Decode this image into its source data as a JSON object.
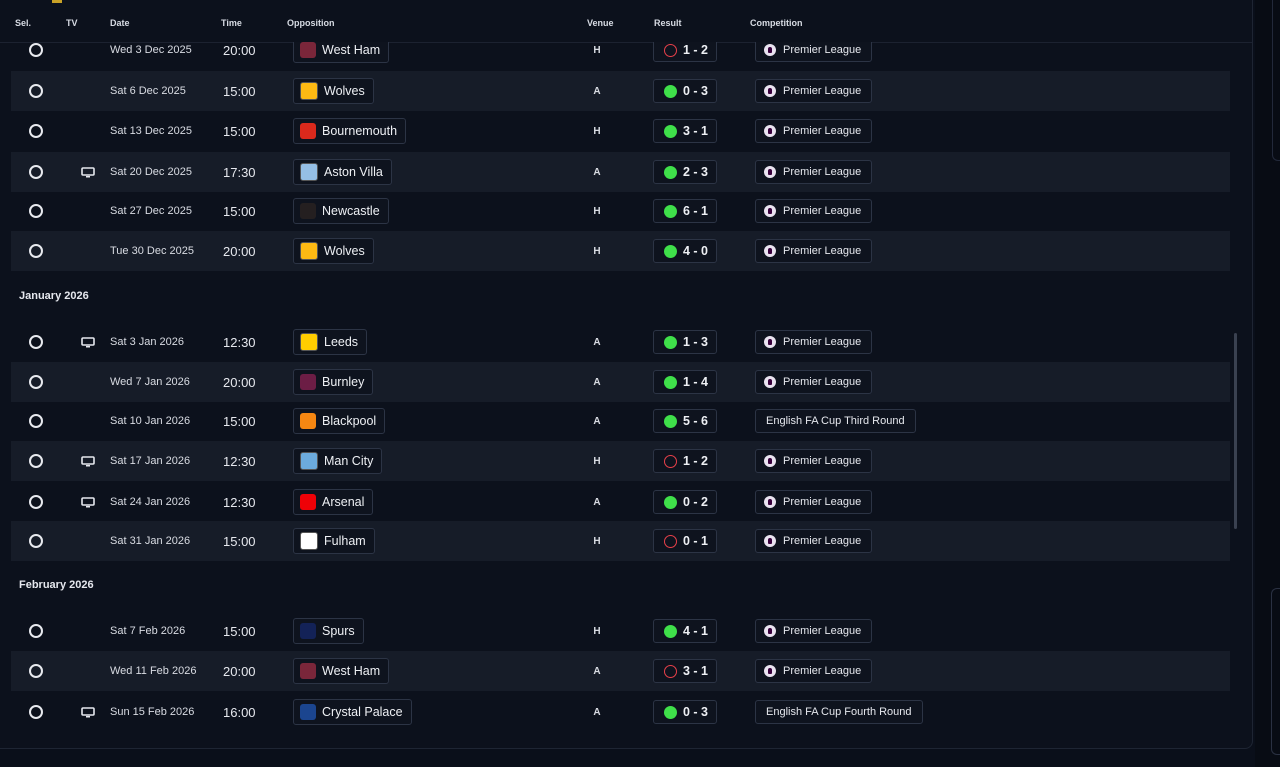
{
  "headers": {
    "sel": "Sel.",
    "tv": "TV",
    "date": "Date",
    "time": "Time",
    "opposition": "Opposition",
    "venue": "Venue",
    "result": "Result",
    "competition": "Competition"
  },
  "months": {
    "jan": "January 2026",
    "feb": "February 2026"
  },
  "rows": [
    {
      "date": "Wed 3 Dec 2025",
      "time": "20:00",
      "team": "West Ham",
      "venue": "H",
      "score": "1 - 2",
      "outcome": "loss",
      "competition": "Premier League",
      "tv": false,
      "crest": "west-ham-crest-icon",
      "crest_color": "#7a263a"
    },
    {
      "date": "Sat 6 Dec 2025",
      "time": "15:00",
      "team": "Wolves",
      "venue": "A",
      "score": "0 - 3",
      "outcome": "win",
      "competition": "Premier League",
      "tv": false,
      "crest": "wolves-crest-icon",
      "crest_color": "#fdb913"
    },
    {
      "date": "Sat 13 Dec 2025",
      "time": "15:00",
      "team": "Bournemouth",
      "venue": "H",
      "score": "3 - 1",
      "outcome": "win",
      "competition": "Premier League",
      "tv": false,
      "crest": "bournemouth-crest-icon",
      "crest_color": "#da291c"
    },
    {
      "date": "Sat 20 Dec 2025",
      "time": "17:30",
      "team": "Aston Villa",
      "venue": "A",
      "score": "2 - 3",
      "outcome": "win",
      "competition": "Premier League",
      "tv": true,
      "crest": "aston-villa-crest-icon",
      "crest_color": "#95bfe5"
    },
    {
      "date": "Sat 27 Dec 2025",
      "time": "15:00",
      "team": "Newcastle",
      "venue": "H",
      "score": "6 - 1",
      "outcome": "win",
      "competition": "Premier League",
      "tv": false,
      "crest": "newcastle-crest-icon",
      "crest_color": "#241f20"
    },
    {
      "date": "Tue 30 Dec 2025",
      "time": "20:00",
      "team": "Wolves",
      "venue": "H",
      "score": "4 - 0",
      "outcome": "win",
      "competition": "Premier League",
      "tv": false,
      "crest": "wolves-crest-icon",
      "crest_color": "#fdb913"
    },
    {
      "date": "Sat 3 Jan 2026",
      "time": "12:30",
      "team": "Leeds",
      "venue": "A",
      "score": "1 - 3",
      "outcome": "win",
      "competition": "Premier League",
      "tv": true,
      "crest": "leeds-crest-icon",
      "crest_color": "#ffcd00"
    },
    {
      "date": "Wed 7 Jan 2026",
      "time": "20:00",
      "team": "Burnley",
      "venue": "A",
      "score": "1 - 4",
      "outcome": "win",
      "competition": "Premier League",
      "tv": false,
      "crest": "burnley-crest-icon",
      "crest_color": "#6c1d45"
    },
    {
      "date": "Sat 10 Jan 2026",
      "time": "15:00",
      "team": "Blackpool",
      "venue": "A",
      "score": "5 - 6",
      "outcome": "win",
      "competition": "English FA Cup Third Round",
      "tv": false,
      "crest": "blackpool-crest-icon",
      "crest_color": "#f68712"
    },
    {
      "date": "Sat 17 Jan 2026",
      "time": "12:30",
      "team": "Man City",
      "venue": "H",
      "score": "1 - 2",
      "outcome": "loss",
      "competition": "Premier League",
      "tv": true,
      "crest": "man-city-crest-icon",
      "crest_color": "#6cabdd"
    },
    {
      "date": "Sat 24 Jan 2026",
      "time": "12:30",
      "team": "Arsenal",
      "venue": "A",
      "score": "0 - 2",
      "outcome": "win",
      "competition": "Premier League",
      "tv": true,
      "crest": "arsenal-crest-icon",
      "crest_color": "#ef0107"
    },
    {
      "date": "Sat 31 Jan 2026",
      "time": "15:00",
      "team": "Fulham",
      "venue": "H",
      "score": "0 - 1",
      "outcome": "loss",
      "competition": "Premier League",
      "tv": false,
      "crest": "fulham-crest-icon",
      "crest_color": "#ffffff"
    },
    {
      "date": "Sat 7 Feb 2026",
      "time": "15:00",
      "team": "Spurs",
      "venue": "H",
      "score": "4 - 1",
      "outcome": "win",
      "competition": "Premier League",
      "tv": false,
      "crest": "spurs-crest-icon",
      "crest_color": "#132257"
    },
    {
      "date": "Wed 11 Feb 2026",
      "time": "20:00",
      "team": "West Ham",
      "venue": "A",
      "score": "3 - 1",
      "outcome": "loss",
      "competition": "Premier League",
      "tv": false,
      "crest": "west-ham-crest-icon",
      "crest_color": "#7a263a"
    },
    {
      "date": "Sun 15 Feb 2026",
      "time": "16:00",
      "team": "Crystal Palace",
      "venue": "A",
      "score": "0 - 3",
      "outcome": "win",
      "competition": "English FA Cup Fourth Round",
      "tv": true,
      "crest": "crystal-palace-crest-icon",
      "crest_color": "#1b458f"
    }
  ],
  "colors": {
    "win": "#3fe04a",
    "loss": "#e8404a",
    "background": "#0c111c",
    "row_alt": "#161c28"
  }
}
